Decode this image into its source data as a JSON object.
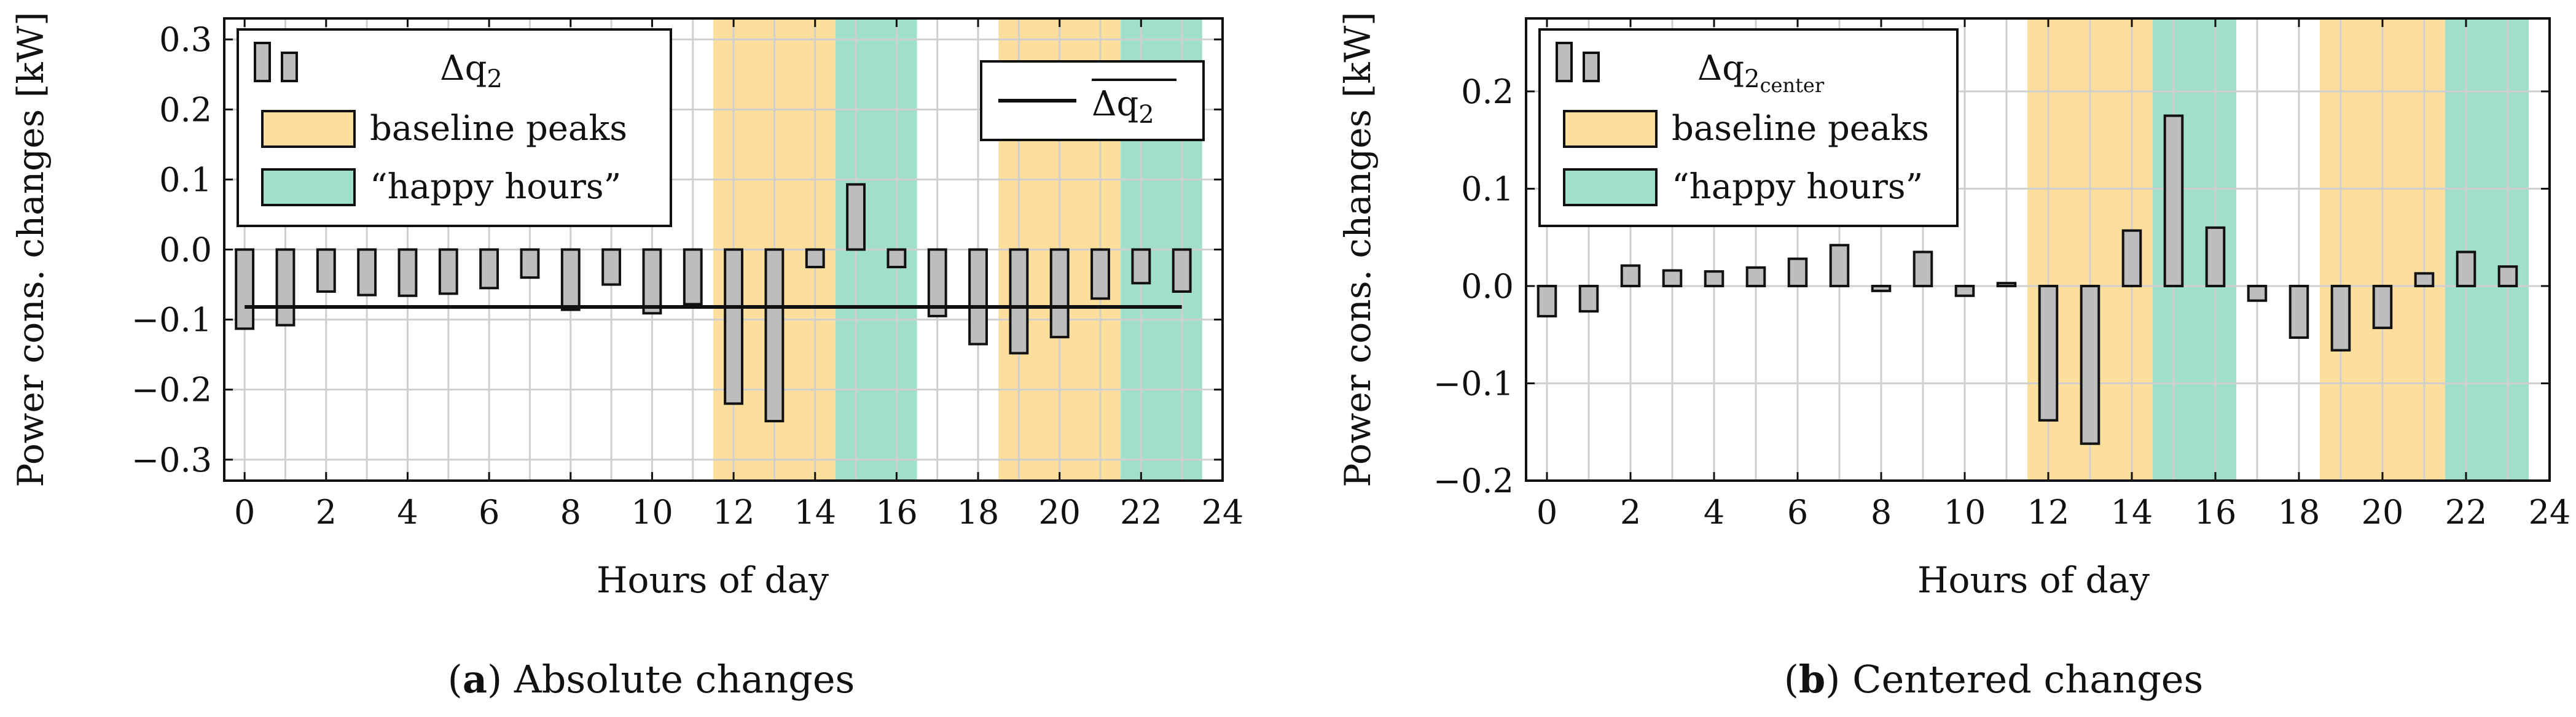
{
  "chart_data": [
    {
      "type": "bar",
      "title": "",
      "caption": {
        "letter": "a",
        "text": "Absolute changes"
      },
      "xlabel": "Hours of day",
      "ylabel": "Power cons. changes [kW]",
      "xlim": [
        -0.5,
        24
      ],
      "ylim": [
        -0.33,
        0.33
      ],
      "xticks": [
        0,
        2,
        4,
        6,
        8,
        10,
        12,
        14,
        16,
        18,
        20,
        22,
        24
      ],
      "yticks": [
        -0.3,
        -0.2,
        -0.1,
        0.0,
        0.1,
        0.2,
        0.3
      ],
      "ytick_labels": [
        "−0.3",
        "−0.2",
        "−0.1",
        "0.0",
        "0.1",
        "0.2",
        "0.3"
      ],
      "hours": [
        0,
        1,
        2,
        3,
        4,
        5,
        6,
        7,
        8,
        9,
        10,
        11,
        12,
        13,
        14,
        15,
        16,
        17,
        18,
        19,
        20,
        21,
        22,
        23
      ],
      "series": [
        {
          "name": "Δq₂",
          "values": [
            -0.113,
            -0.108,
            -0.06,
            -0.065,
            -0.066,
            -0.063,
            -0.055,
            -0.04,
            -0.086,
            -0.05,
            -0.091,
            -0.078,
            -0.22,
            -0.245,
            -0.025,
            0.093,
            -0.025,
            -0.095,
            -0.135,
            -0.148,
            -0.125,
            -0.07,
            -0.048,
            -0.06
          ]
        }
      ],
      "mean_line": {
        "name": "mean Δq₂",
        "value": -0.082
      },
      "shaded_regions": [
        {
          "kind": "baseline peaks",
          "from": 11.5,
          "to": 14.5
        },
        {
          "kind": "happy hours",
          "from": 14.5,
          "to": 16.5
        },
        {
          "kind": "baseline peaks",
          "from": 18.5,
          "to": 21.5
        },
        {
          "kind": "happy hours",
          "from": 21.5,
          "to": 23.5
        }
      ],
      "legend": {
        "series_label": "Δq",
        "series_sub": "2",
        "baseline_label": "baseline peaks",
        "happy_label": "“happy hours”",
        "mean_label": "Δq",
        "mean_sub": "2"
      }
    },
    {
      "type": "bar",
      "title": "",
      "caption": {
        "letter": "b",
        "text": "Centered changes"
      },
      "xlabel": "Hours of day",
      "ylabel": "Power cons. changes [kW]",
      "xlim": [
        -0.5,
        24
      ],
      "ylim": [
        -0.2,
        0.275
      ],
      "xticks": [
        0,
        2,
        4,
        6,
        8,
        10,
        12,
        14,
        16,
        18,
        20,
        22,
        24
      ],
      "yticks": [
        -0.2,
        -0.1,
        0.0,
        0.1,
        0.2
      ],
      "ytick_labels": [
        "−0.2",
        "−0.1",
        "0.0",
        "0.1",
        "0.2"
      ],
      "hours": [
        0,
        1,
        2,
        3,
        4,
        5,
        6,
        7,
        8,
        9,
        10,
        11,
        12,
        13,
        14,
        15,
        16,
        17,
        18,
        19,
        20,
        21,
        22,
        23
      ],
      "series": [
        {
          "name": "Δq₂center",
          "values": [
            -0.031,
            -0.026,
            0.021,
            0.016,
            0.015,
            0.019,
            0.028,
            0.042,
            -0.005,
            0.035,
            -0.01,
            0.003,
            -0.138,
            -0.162,
            0.057,
            0.175,
            0.06,
            -0.015,
            -0.053,
            -0.066,
            -0.043,
            0.013,
            0.035,
            0.02
          ]
        }
      ],
      "shaded_regions": [
        {
          "kind": "baseline peaks",
          "from": 11.5,
          "to": 14.5
        },
        {
          "kind": "happy hours",
          "from": 14.5,
          "to": 16.5
        },
        {
          "kind": "baseline peaks",
          "from": 18.5,
          "to": 21.5
        },
        {
          "kind": "happy hours",
          "from": 21.5,
          "to": 23.5
        }
      ],
      "legend": {
        "series_label": "Δq",
        "series_sub": "2",
        "series_subsub": "center",
        "baseline_label": "baseline peaks",
        "happy_label": "“happy hours”"
      }
    }
  ],
  "colors": {
    "bar_fill": "#bdbdbd",
    "bar_stroke": "#111111",
    "baseline_peaks": "#fddf9d",
    "happy_hours": "#a0dfcb",
    "grid": "#cfcfcf",
    "axis": "#111111"
  }
}
